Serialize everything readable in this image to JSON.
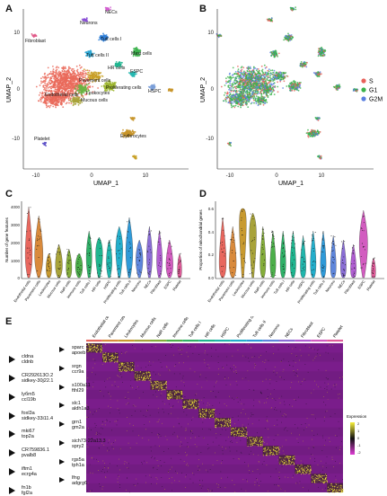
{
  "panels": {
    "a": "A",
    "b": "B",
    "c": "C",
    "d": "D",
    "e": "E"
  },
  "umap": {
    "xlabel": "UMAP_1",
    "ylabel": "UMAP_2",
    "xticks": [
      "-10",
      "0",
      "10"
    ],
    "yticks": [
      "10",
      "0",
      "-10"
    ],
    "clusters": [
      {
        "label": "NECs",
        "color": "#d45fd1"
      },
      {
        "label": "Neurons",
        "color": "#8a4fd6"
      },
      {
        "label": "Fibroblast",
        "color": "#e05a8a"
      },
      {
        "label": "Tuft cells I",
        "color": "#2f7fd8"
      },
      {
        "label": "Tuft cells II",
        "color": "#2aa6d4"
      },
      {
        "label": "Mast cells",
        "color": "#3bb24b"
      },
      {
        "label": "HR cells",
        "color": "#1fb58f"
      },
      {
        "label": "ESPC",
        "color": "#24b7b0"
      },
      {
        "label": "Pavement cells",
        "color": "#c8a027"
      },
      {
        "label": "Proliferating cells",
        "color": "#9bb52c"
      },
      {
        "label": "Endothelial cells",
        "color": "#ea6a5a"
      },
      {
        "label": "HSPC",
        "color": "#7a9fd8"
      },
      {
        "label": "Leukocytes",
        "color": "#6ab443"
      },
      {
        "label": "Mucous cells",
        "color": "#a8a33a"
      },
      {
        "label": "Platelet",
        "color": "#5a4fc7"
      },
      {
        "label": "Erythrocytes",
        "color": "#c8952a"
      }
    ]
  },
  "phase": {
    "legend": [
      {
        "label": "S",
        "color": "#e8615a"
      },
      {
        "label": "G1",
        "color": "#3bb24b"
      },
      {
        "label": "G2M",
        "color": "#5a7fe0"
      }
    ]
  },
  "violin_c": {
    "ylabel": "Number of gene features",
    "yticks": [
      "4000",
      "3000",
      "2000",
      "1000",
      "0"
    ]
  },
  "violin_d": {
    "ylabel": "Proportion of mitochondrial genes",
    "yticks": [
      "0.6",
      "0.4",
      "0.2",
      "0.0"
    ]
  },
  "violin_categories": [
    "Endothelial cells",
    "Pavement cells",
    "Leukocytes",
    "Mucous cells",
    "NaR cells",
    "Immune cells",
    "Tuft cells I",
    "HR cells",
    "HSPC",
    "Proliferating cells",
    "Tuft cells II",
    "Neurons",
    "NECs",
    "Fibroblast",
    "ESPC",
    "Platelet"
  ],
  "violin_colors": [
    "#e8675e",
    "#d98a3c",
    "#c89a2f",
    "#a8a33a",
    "#84ad3a",
    "#4caf4a",
    "#2fb067",
    "#1fb58f",
    "#21b5ac",
    "#23aecb",
    "#2f9ad8",
    "#5e86dc",
    "#8a6ed6",
    "#b05ed2",
    "#d25cc0",
    "#e05c9a"
  ],
  "heatmap": {
    "legend_title": "Expression",
    "legend_ticks": [
      "2",
      "1",
      "0",
      "-1",
      "-2"
    ],
    "genes": [
      "sparc",
      "apoeb",
      "cldna",
      "cldnb",
      "srgn",
      "ccr9a",
      "CR292613O.2",
      "sidkey-30j22.1",
      "s100a11",
      "fthl29",
      "lyбm5",
      "ccl19b",
      "slc1",
      "aldh1a3",
      "foxl3a",
      "sidkey-33i11.4",
      "grn1",
      "gm2a",
      "mki67",
      "top2a",
      "sich73-22a13.3",
      "spry2",
      "CR759836.1",
      "pvalb8",
      "rgs5a",
      "tph1a",
      "iftm1",
      "ecrg4a",
      "lfng",
      "adgrg6",
      "fn1b",
      "fgl2a"
    ]
  }
}
